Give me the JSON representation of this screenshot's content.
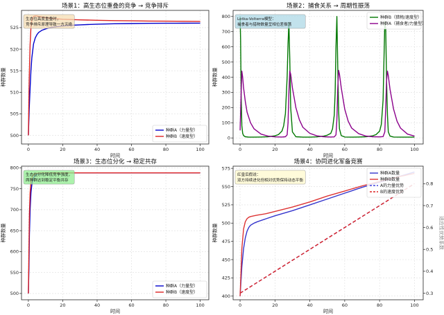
{
  "chart_data": [
    {
      "type": "line",
      "title": "场景1：高生态位重叠的竞争 → 竞争排斥",
      "xlabel": "时间",
      "ylabel": "种群数量",
      "xlim": [
        -4,
        105
      ],
      "ylim": [
        498,
        529
      ],
      "xticks": [
        0,
        20,
        40,
        60,
        80,
        100
      ],
      "yticks": [
        500,
        505,
        510,
        515,
        520,
        525
      ],
      "grid": true,
      "legend_position": "bottom-right",
      "annotation": [
        "生态位高度重叠时，",
        "竞争排斥原理导致一方灭绝"
      ],
      "annotation_color": "#f5deb3",
      "series": [
        {
          "name": "种群A（力量型）",
          "color": "#0000cc",
          "x": [
            0,
            0.5,
            1,
            1.5,
            2,
            3,
            4,
            5,
            6,
            8,
            10,
            12,
            15,
            20,
            25,
            30,
            40,
            50,
            60,
            70,
            80,
            90,
            100
          ],
          "y": [
            500,
            506,
            511,
            515,
            518,
            521.2,
            522.6,
            523.4,
            523.9,
            524.4,
            524.7,
            524.95,
            525.15,
            525.4,
            525.55,
            525.65,
            525.8,
            525.9,
            525.95,
            526.0,
            526.02,
            526.03,
            526.05
          ]
        },
        {
          "name": "种群B（速度型）",
          "color": "#dd2222",
          "x": [
            0,
            0.5,
            1,
            1.5,
            2,
            3,
            4,
            5,
            6,
            8,
            10,
            15,
            20,
            30,
            40,
            50,
            60,
            70,
            80,
            90,
            100
          ],
          "y": [
            500,
            513,
            521,
            525,
            526.8,
            527.6,
            527.75,
            527.7,
            527.6,
            527.45,
            527.3,
            527.1,
            526.95,
            526.8,
            526.7,
            526.62,
            526.57,
            526.53,
            526.5,
            526.48,
            526.45
          ]
        }
      ]
    },
    {
      "type": "line",
      "title": "场景2：捕食关系 → 周期性振荡",
      "xlabel": "时间",
      "ylabel": "种群数量",
      "xlim": [
        -4,
        105
      ],
      "ylim": [
        -40,
        840
      ],
      "xticks": [
        0,
        20,
        40,
        60,
        80,
        100
      ],
      "yticks": [
        0,
        100,
        200,
        300,
        400,
        500,
        600,
        700,
        800
      ],
      "grid": true,
      "legend_position": "top-right",
      "annotation": [
        "Lotka-Volterra模型：",
        "捕食者与猎物数量呈相位差振荡"
      ],
      "annotation_color": "#add8e6",
      "series": [
        {
          "name": "种群B（猎物/速度型）",
          "color": "#007700",
          "x": [
            0,
            0.3,
            0.6,
            1,
            1.5,
            2,
            3,
            5,
            8,
            12,
            16,
            20,
            22,
            24,
            25,
            26,
            27,
            27.5,
            28,
            28.5,
            29,
            30,
            32,
            36,
            40,
            44,
            48,
            50,
            52,
            53,
            54,
            54.5,
            55,
            55.5,
            56,
            56.5,
            57,
            58,
            60,
            64,
            68,
            72,
            76,
            78,
            80,
            81,
            82,
            82.5,
            83,
            83.5,
            84,
            84.5,
            85,
            86,
            88,
            92,
            96,
            100
          ],
          "y": [
            800,
            650,
            280,
            80,
            30,
            15,
            8,
            5,
            5,
            6,
            8,
            14,
            22,
            45,
            80,
            160,
            400,
            620,
            760,
            520,
            200,
            40,
            8,
            5,
            5,
            7,
            12,
            18,
            30,
            60,
            150,
            300,
            600,
            800,
            480,
            180,
            60,
            15,
            6,
            5,
            6,
            8,
            14,
            22,
            45,
            90,
            250,
            500,
            770,
            720,
            380,
            150,
            40,
            12,
            6,
            5,
            5,
            5
          ]
        },
        {
          "name": "种群A（捕食者/力量型）",
          "color": "#8b008b",
          "x": [
            0,
            0.5,
            1,
            1.5,
            2,
            3,
            4,
            6,
            8,
            12,
            16,
            20,
            24,
            26,
            27,
            27.5,
            28,
            28.5,
            29,
            30,
            32,
            34,
            36,
            40,
            44,
            48,
            52,
            54,
            55,
            55.5,
            56,
            56.5,
            57,
            58,
            60,
            62,
            64,
            68,
            72,
            76,
            80,
            82,
            83,
            83.5,
            84,
            84.5,
            85,
            86,
            88,
            90,
            92,
            96,
            100
          ],
          "y": [
            50,
            250,
            440,
            400,
            330,
            240,
            170,
            100,
            60,
            25,
            12,
            7,
            6,
            8,
            20,
            100,
            300,
            440,
            420,
            330,
            200,
            120,
            70,
            30,
            14,
            8,
            6,
            7,
            20,
            120,
            320,
            445,
            420,
            330,
            190,
            110,
            65,
            28,
            13,
            8,
            7,
            9,
            40,
            200,
            380,
            440,
            410,
            320,
            190,
            110,
            65,
            25,
            12
          ]
        }
      ]
    },
    {
      "type": "line",
      "title": "场景3：生态位分化 → 稳定共存",
      "xlabel": "时间",
      "ylabel": "种群数量",
      "xlim": [
        -4,
        105
      ],
      "ylim": [
        485,
        804
      ],
      "xticks": [
        0,
        20,
        40,
        60,
        80,
        100
      ],
      "yticks": [
        500,
        550,
        600,
        650,
        700,
        750,
        800
      ],
      "grid": true,
      "legend_position": "bottom-right",
      "annotation": [
        "生态位分化降低竞争强度，",
        "两种群达到稳定平衡共存"
      ],
      "annotation_color": "#90ee90",
      "series": [
        {
          "name": "种群A（力量型）",
          "color": "#0000cc",
          "x": [
            0,
            0.3,
            0.6,
            1,
            1.5,
            2,
            2.5,
            3,
            4,
            5,
            6,
            8,
            10,
            15,
            20,
            40,
            60,
            80,
            100
          ],
          "y": [
            500,
            560,
            640,
            700,
            740,
            760,
            770,
            776,
            782,
            785,
            786,
            787,
            787.5,
            788,
            788,
            788,
            788,
            788,
            788
          ]
        },
        {
          "name": "种群B（速度型）",
          "color": "#dd2222",
          "x": [
            0,
            0.3,
            0.6,
            1,
            1.5,
            2,
            2.5,
            3,
            4,
            5,
            6,
            8,
            10,
            15,
            20,
            40,
            60,
            80,
            100
          ],
          "y": [
            500,
            600,
            690,
            740,
            765,
            775,
            780,
            783,
            786,
            787,
            787.5,
            788,
            788,
            788,
            788,
            788,
            788,
            788,
            788
          ]
        }
      ]
    },
    {
      "type": "line",
      "title": "场景4：协同进化军备竞赛",
      "xlabel": "时间",
      "ylabel": "种群数量",
      "y2label": "适应性优势系数",
      "xlim": [
        -4,
        105
      ],
      "ylim": [
        395,
        578
      ],
      "y2lim": [
        0.27,
        0.88
      ],
      "xticks": [
        0,
        20,
        40,
        60,
        80,
        100
      ],
      "yticks": [
        400,
        425,
        450,
        475,
        500,
        525,
        550,
        575
      ],
      "y2ticks": [
        0.3,
        0.4,
        0.5,
        0.6,
        0.7,
        0.8
      ],
      "grid": true,
      "legend_position": "top-right",
      "annotation": [
        "红皇后假说：",
        "双方持续进化但相对优势保持动态平衡"
      ],
      "annotation_color": "#fffacd",
      "series": [
        {
          "name": "种群A数量",
          "color": "#3333cc",
          "axis": "left",
          "x": [
            0,
            1,
            2,
            3,
            4,
            5,
            6,
            8,
            10,
            15,
            20,
            30,
            40,
            50,
            60,
            70,
            80,
            90,
            100
          ],
          "y": [
            400,
            440,
            465,
            480,
            489,
            494,
            497,
            500,
            502,
            506,
            510,
            517,
            525,
            533,
            541,
            549,
            556,
            563,
            570
          ]
        },
        {
          "name": "种群B数量",
          "color": "#dd3333",
          "axis": "left",
          "x": [
            0,
            1,
            2,
            3,
            4,
            5,
            6,
            8,
            10,
            15,
            20,
            30,
            40,
            50,
            60,
            70,
            80,
            90,
            100
          ],
          "y": [
            400,
            465,
            492,
            502,
            506,
            508,
            509,
            510,
            511,
            513,
            516,
            522,
            529,
            537,
            544,
            551,
            557,
            563,
            568
          ]
        },
        {
          "name": "A的力量优势",
          "color": "#4444dd",
          "axis": "right",
          "dash": true,
          "x": [
            0,
            10,
            20,
            30,
            40,
            50,
            60,
            70,
            80,
            90,
            100
          ],
          "y": [
            0.3,
            0.35,
            0.4,
            0.45,
            0.5,
            0.55,
            0.6,
            0.65,
            0.7,
            0.75,
            0.8
          ]
        },
        {
          "name": "B的速度优势",
          "color": "#dd2222",
          "axis": "right",
          "dash": true,
          "x": [
            0,
            10,
            20,
            30,
            40,
            50,
            60,
            70,
            80,
            90,
            100
          ],
          "y": [
            0.3,
            0.35,
            0.4,
            0.45,
            0.5,
            0.55,
            0.6,
            0.65,
            0.7,
            0.75,
            0.8
          ]
        }
      ]
    }
  ]
}
